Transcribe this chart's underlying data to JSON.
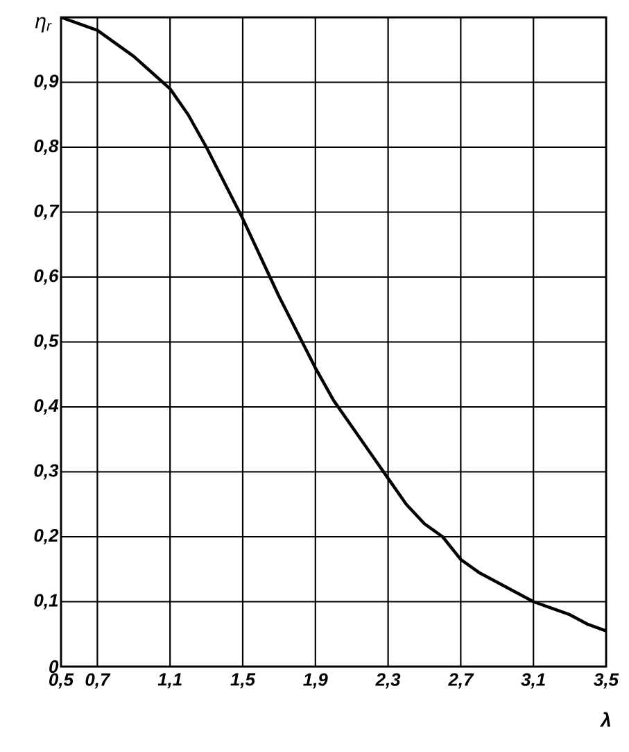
{
  "chart_data": {
    "type": "line",
    "xlabel": "λ",
    "ylabel": "η$_{r}$",
    "x": [
      0.5,
      0.7,
      0.9,
      1.0,
      1.1,
      1.2,
      1.3,
      1.4,
      1.5,
      1.6,
      1.7,
      1.8,
      1.9,
      2.0,
      2.1,
      2.2,
      2.3,
      2.4,
      2.5,
      2.6,
      2.7,
      2.8,
      2.9,
      3.0,
      3.1,
      3.2,
      3.3,
      3.4,
      3.5
    ],
    "values": [
      1.0,
      0.98,
      0.94,
      0.915,
      0.89,
      0.85,
      0.8,
      0.745,
      0.69,
      0.63,
      0.57,
      0.515,
      0.46,
      0.41,
      0.37,
      0.33,
      0.29,
      0.25,
      0.22,
      0.2,
      0.165,
      0.145,
      0.13,
      0.115,
      0.1,
      0.09,
      0.08,
      0.065,
      0.055
    ],
    "color": "#000000",
    "xlim": [
      0.5,
      3.5
    ],
    "ylim": [
      0,
      1
    ],
    "xticks": [
      {
        "value": 0.5,
        "label": "0,5"
      },
      {
        "value": 0.7,
        "label": "0,7"
      },
      {
        "value": 1.1,
        "label": "1,1"
      },
      {
        "value": 1.5,
        "label": "1,5"
      },
      {
        "value": 1.9,
        "label": "1,9"
      },
      {
        "value": 2.3,
        "label": "2,3"
      },
      {
        "value": 2.7,
        "label": "2,7"
      },
      {
        "value": 3.1,
        "label": "3,1"
      },
      {
        "value": 3.5,
        "label": "3,5"
      }
    ],
    "yticks": [
      0,
      {
        "value": 0.1,
        "label": "0,1"
      },
      {
        "value": 0.2,
        "label": "0,2"
      },
      {
        "value": 0.3,
        "label": "0,3"
      },
      {
        "value": 0.4,
        "label": "0,4"
      },
      {
        "value": 0.5,
        "label": "0,5"
      },
      {
        "value": 0.6,
        "label": "0,6"
      },
      {
        "value": 0.7,
        "label": "0,7"
      },
      {
        "value": 0.8,
        "label": "0,8"
      },
      {
        "value": 0.9,
        "label": "0,9"
      }
    ],
    "grid": true
  }
}
